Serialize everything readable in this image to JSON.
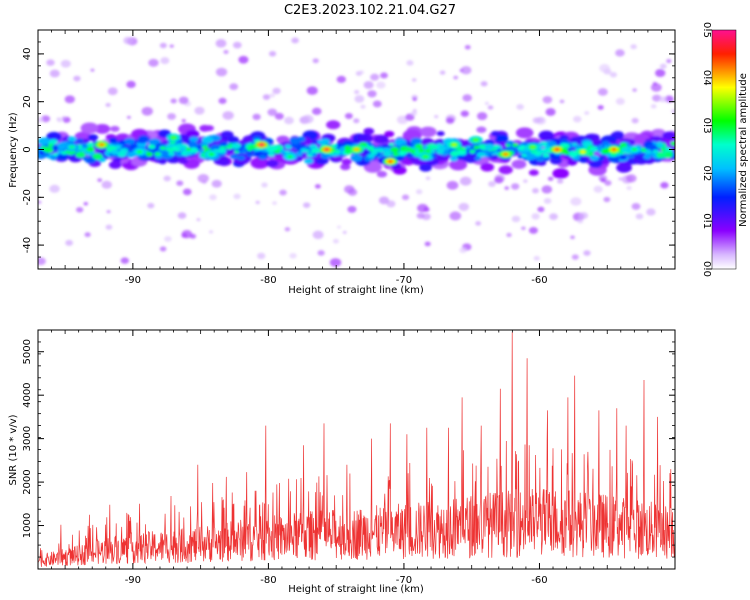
{
  "title": "C2E3.2023.102.21.04.G27",
  "chart_data": [
    {
      "type": "heatmap",
      "panel": "spectrogram",
      "title": "C2E3.2023.102.21.04.G27",
      "xlabel": "Height of straight line (km)",
      "ylabel": "Frequency (Hz)",
      "xlim": [
        -97,
        -50
      ],
      "ylim": [
        -50,
        50
      ],
      "xticks": [
        -90,
        -80,
        -70,
        -60
      ],
      "yticks": [
        -40,
        -20,
        0,
        20,
        40
      ],
      "band_center_hz": 0,
      "band_half_width_hz": 10,
      "colorbar": {
        "label": "Normalized spectral amplitude",
        "range": [
          0.0,
          0.5
        ],
        "ticks": [
          "0.0",
          "0.1",
          "0.2",
          "0.3",
          "0.4",
          "0.5"
        ],
        "colors": [
          "#ffffff",
          "#a020f0",
          "#0000ff",
          "#00ffff",
          "#00ff00",
          "#ffff00",
          "#ff0000",
          "#ff1493"
        ]
      },
      "hotspots": [
        {
          "x": -94.5,
          "y": 1,
          "v": 0.28
        },
        {
          "x": -92.3,
          "y": 2,
          "v": 0.42
        },
        {
          "x": -89.5,
          "y": -1,
          "v": 0.3
        },
        {
          "x": -87.0,
          "y": 5,
          "v": 0.33
        },
        {
          "x": -84.2,
          "y": -2,
          "v": 0.31
        },
        {
          "x": -80.5,
          "y": 2,
          "v": 0.48
        },
        {
          "x": -78.4,
          "y": -3,
          "v": 0.3
        },
        {
          "x": -75.7,
          "y": 0,
          "v": 0.47
        },
        {
          "x": -73.5,
          "y": 0,
          "v": 0.4
        },
        {
          "x": -71.0,
          "y": -5,
          "v": 0.45
        },
        {
          "x": -68.4,
          "y": -3,
          "v": 0.32
        },
        {
          "x": -66.3,
          "y": 2,
          "v": 0.36
        },
        {
          "x": -64.7,
          "y": 4,
          "v": 0.33
        },
        {
          "x": -62.5,
          "y": -2,
          "v": 0.42
        },
        {
          "x": -60.5,
          "y": 1,
          "v": 0.34
        },
        {
          "x": -58.7,
          "y": 0,
          "v": 0.46
        },
        {
          "x": -56.8,
          "y": -1,
          "v": 0.38
        },
        {
          "x": -54.5,
          "y": 0,
          "v": 0.44
        },
        {
          "x": -53.0,
          "y": 0,
          "v": 0.3
        }
      ]
    },
    {
      "type": "line",
      "panel": "snr",
      "xlabel": "Height of straight line (km)",
      "ylabel": "SNR (10 * v/v)",
      "xlim": [
        -97,
        -50
      ],
      "ylim": [
        0,
        5500
      ],
      "xticks": [
        -90,
        -80,
        -70,
        -60
      ],
      "yticks": [
        1000,
        2000,
        3000,
        4000,
        5000
      ],
      "line_color": "#ee3333",
      "series": [
        {
          "x": [
            -97,
            -96,
            -95,
            -94,
            -93,
            -92,
            -91,
            -90,
            -89,
            -88,
            -87,
            -86,
            -85,
            -84,
            -83,
            -82,
            -81,
            -80,
            -79,
            -78,
            -77,
            -76,
            -75,
            -74,
            -73,
            -72,
            -71,
            -70,
            -69,
            -68,
            -67,
            -66,
            -65,
            -64,
            -63,
            -62,
            -61,
            -60,
            -59,
            -58,
            -57,
            -56,
            -55,
            -54,
            -53,
            -52,
            -51,
            -50
          ],
          "values": [
            300,
            380,
            450,
            520,
            620,
            700,
            760,
            800,
            820,
            850,
            880,
            900,
            950,
            1000,
            1050,
            1100,
            1150,
            1180,
            1200,
            1250,
            1280,
            1300,
            1320,
            1350,
            1380,
            1400,
            1420,
            1450,
            1480,
            1500,
            1550,
            1600,
            1650,
            1700,
            1720,
            1750,
            1780,
            1800,
            1800,
            1780,
            1750,
            1700,
            1650,
            1600,
            1550,
            1500,
            1450,
            1400
          ]
        }
      ],
      "peaks": [
        {
          "x": -96.8,
          "y": 480
        },
        {
          "x": -95.3,
          "y": 1020
        },
        {
          "x": -93.2,
          "y": 1250
        },
        {
          "x": -91.7,
          "y": 1480
        },
        {
          "x": -89.5,
          "y": 1500
        },
        {
          "x": -87.2,
          "y": 1680
        },
        {
          "x": -85.2,
          "y": 2400
        },
        {
          "x": -84.1,
          "y": 1980
        },
        {
          "x": -83.1,
          "y": 2120
        },
        {
          "x": -81.6,
          "y": 2230
        },
        {
          "x": -80.2,
          "y": 3300
        },
        {
          "x": -77.4,
          "y": 2850
        },
        {
          "x": -75.9,
          "y": 3350
        },
        {
          "x": -74.2,
          "y": 2400
        },
        {
          "x": -72.4,
          "y": 3000
        },
        {
          "x": -71.0,
          "y": 3350
        },
        {
          "x": -69.8,
          "y": 3100
        },
        {
          "x": -68.3,
          "y": 3250
        },
        {
          "x": -66.7,
          "y": 3250
        },
        {
          "x": -65.7,
          "y": 3950
        },
        {
          "x": -64.3,
          "y": 3300
        },
        {
          "x": -62.9,
          "y": 4150
        },
        {
          "x": -62.0,
          "y": 5450
        },
        {
          "x": -60.9,
          "y": 4850
        },
        {
          "x": -59.4,
          "y": 3650
        },
        {
          "x": -57.9,
          "y": 3950
        },
        {
          "x": -57.4,
          "y": 4450
        },
        {
          "x": -55.6,
          "y": 3650
        },
        {
          "x": -54.3,
          "y": 3700
        },
        {
          "x": -53.6,
          "y": 3300
        },
        {
          "x": -52.3,
          "y": 4350
        },
        {
          "x": -51.3,
          "y": 3500
        },
        {
          "x": -50.3,
          "y": 2300
        }
      ]
    }
  ]
}
